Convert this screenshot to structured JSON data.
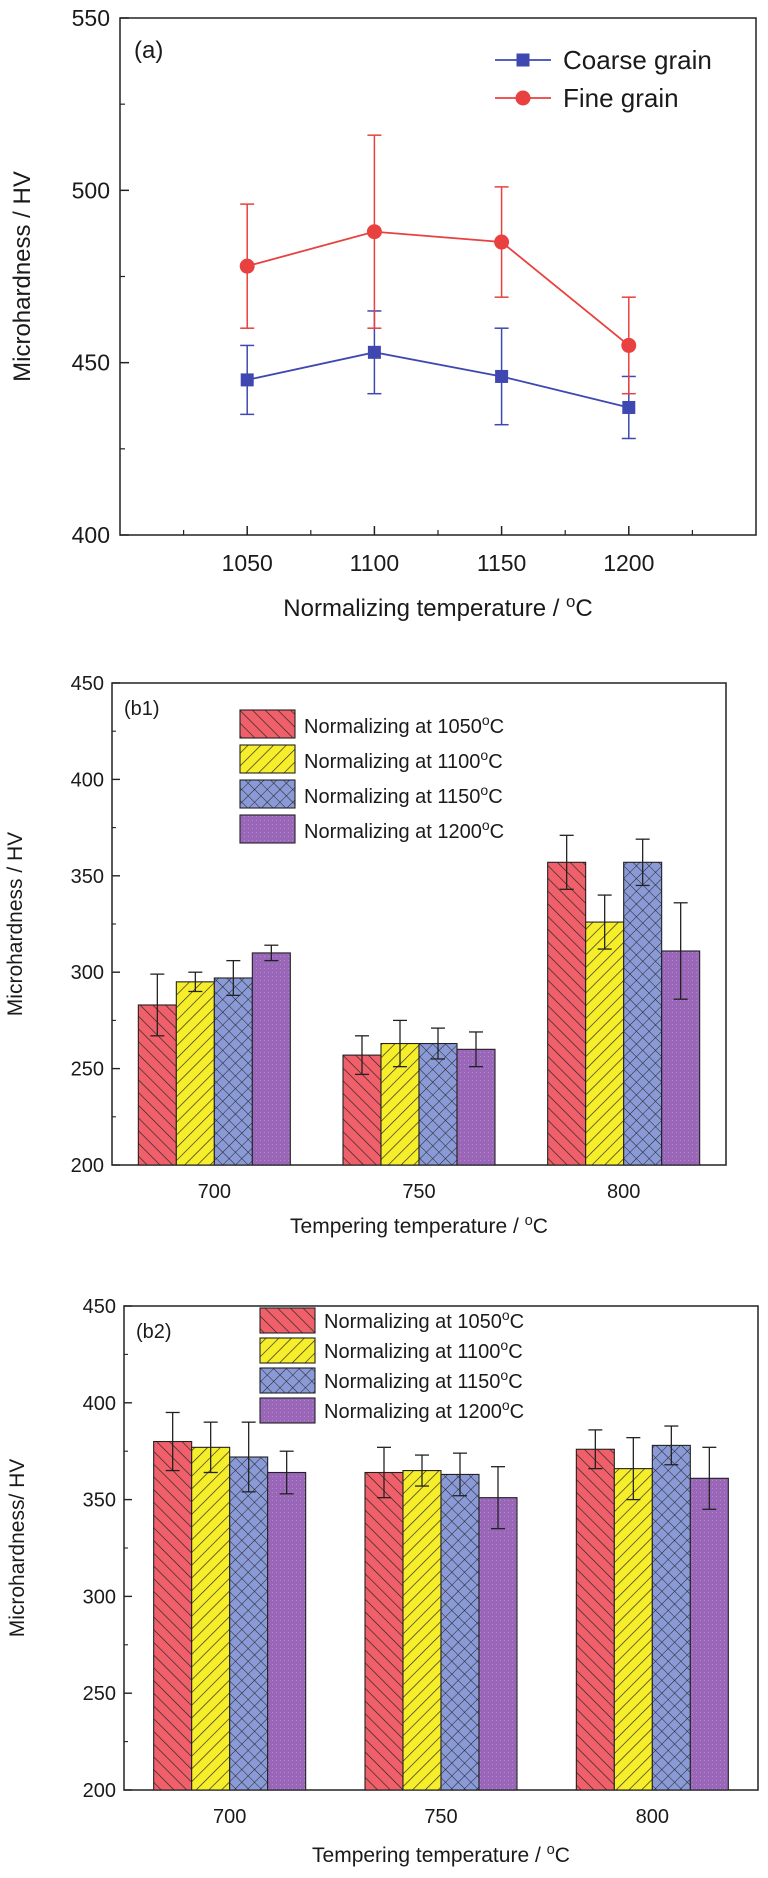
{
  "chart_data": [
    {
      "type": "line",
      "panel_label": "(a)",
      "xlabel": "Normalizing temperature / ",
      "xlabel_unit": "C",
      "ylabel": "Microhardness / HV",
      "x": [
        1050,
        1100,
        1150,
        1200
      ],
      "xticks": [
        "1050",
        "1100",
        "1150",
        "1200"
      ],
      "xlim": [
        1000,
        1250
      ],
      "ylim": [
        400,
        550
      ],
      "yticks": [
        "400",
        "450",
        "500",
        "550"
      ],
      "legend_position": "top-right",
      "series": [
        {
          "name": "Coarse grain",
          "color": "#3f48b0",
          "marker": "square",
          "values": [
            445,
            453,
            446,
            437
          ],
          "errors": [
            10,
            12,
            14,
            9
          ]
        },
        {
          "name": "Fine grain",
          "color": "#e8413f",
          "marker": "circle",
          "values": [
            478,
            488,
            485,
            455
          ],
          "errors": [
            18,
            28,
            16,
            14
          ]
        }
      ]
    },
    {
      "type": "bar",
      "panel_label": "(b1)",
      "xlabel": "Tempering temperature / ",
      "xlabel_unit": "C",
      "ylabel": "Microhardness / HV",
      "categories": [
        "700",
        "750",
        "800"
      ],
      "ylim": [
        200,
        450
      ],
      "yticks": [
        "200",
        "250",
        "300",
        "350",
        "400",
        "450"
      ],
      "legend_position": "top-center",
      "series": [
        {
          "name": "Normalizing at 1050",
          "unit": "C",
          "color": "#f0606a",
          "hatch": "diag-right",
          "values": [
            283,
            257,
            357
          ],
          "errors": [
            16,
            10,
            14
          ]
        },
        {
          "name": "Normalizing at 1100",
          "unit": "C",
          "color": "#f6ee2a",
          "hatch": "diag-left",
          "values": [
            295,
            263,
            326
          ],
          "errors": [
            5,
            12,
            14
          ]
        },
        {
          "name": "Normalizing at 1150",
          "unit": "C",
          "color": "#8a9ad6",
          "hatch": "cross",
          "values": [
            297,
            263,
            357
          ],
          "errors": [
            9,
            8,
            12
          ]
        },
        {
          "name": "Normalizing at 1200",
          "unit": "C",
          "color": "#9966b8",
          "hatch": "none",
          "values": [
            310,
            260,
            311
          ],
          "errors": [
            4,
            9,
            25
          ]
        }
      ]
    },
    {
      "type": "bar",
      "panel_label": "(b2)",
      "xlabel": "Tempering temperature / ",
      "xlabel_unit": "C",
      "ylabel": "Microhardness/ HV",
      "categories": [
        "700",
        "750",
        "800"
      ],
      "ylim": [
        200,
        450
      ],
      "yticks": [
        "200",
        "250",
        "300",
        "350",
        "400",
        "450"
      ],
      "legend_position": "top-center",
      "series": [
        {
          "name": "Normalizing at 1050",
          "unit": "C",
          "color": "#f0606a",
          "hatch": "diag-right",
          "values": [
            380,
            364,
            376
          ],
          "errors": [
            15,
            13,
            10
          ]
        },
        {
          "name": "Normalizing at 1100",
          "unit": "C",
          "color": "#f6ee2a",
          "hatch": "diag-left",
          "values": [
            377,
            365,
            366
          ],
          "errors": [
            13,
            8,
            16
          ]
        },
        {
          "name": "Normalizing at 1150",
          "unit": "C",
          "color": "#8a9ad6",
          "hatch": "cross",
          "values": [
            372,
            363,
            378
          ],
          "errors": [
            18,
            11,
            10
          ]
        },
        {
          "name": "Normalizing at 1200",
          "unit": "C",
          "color": "#9966b8",
          "hatch": "none",
          "values": [
            364,
            351,
            361
          ],
          "errors": [
            11,
            16,
            16
          ]
        }
      ]
    }
  ]
}
